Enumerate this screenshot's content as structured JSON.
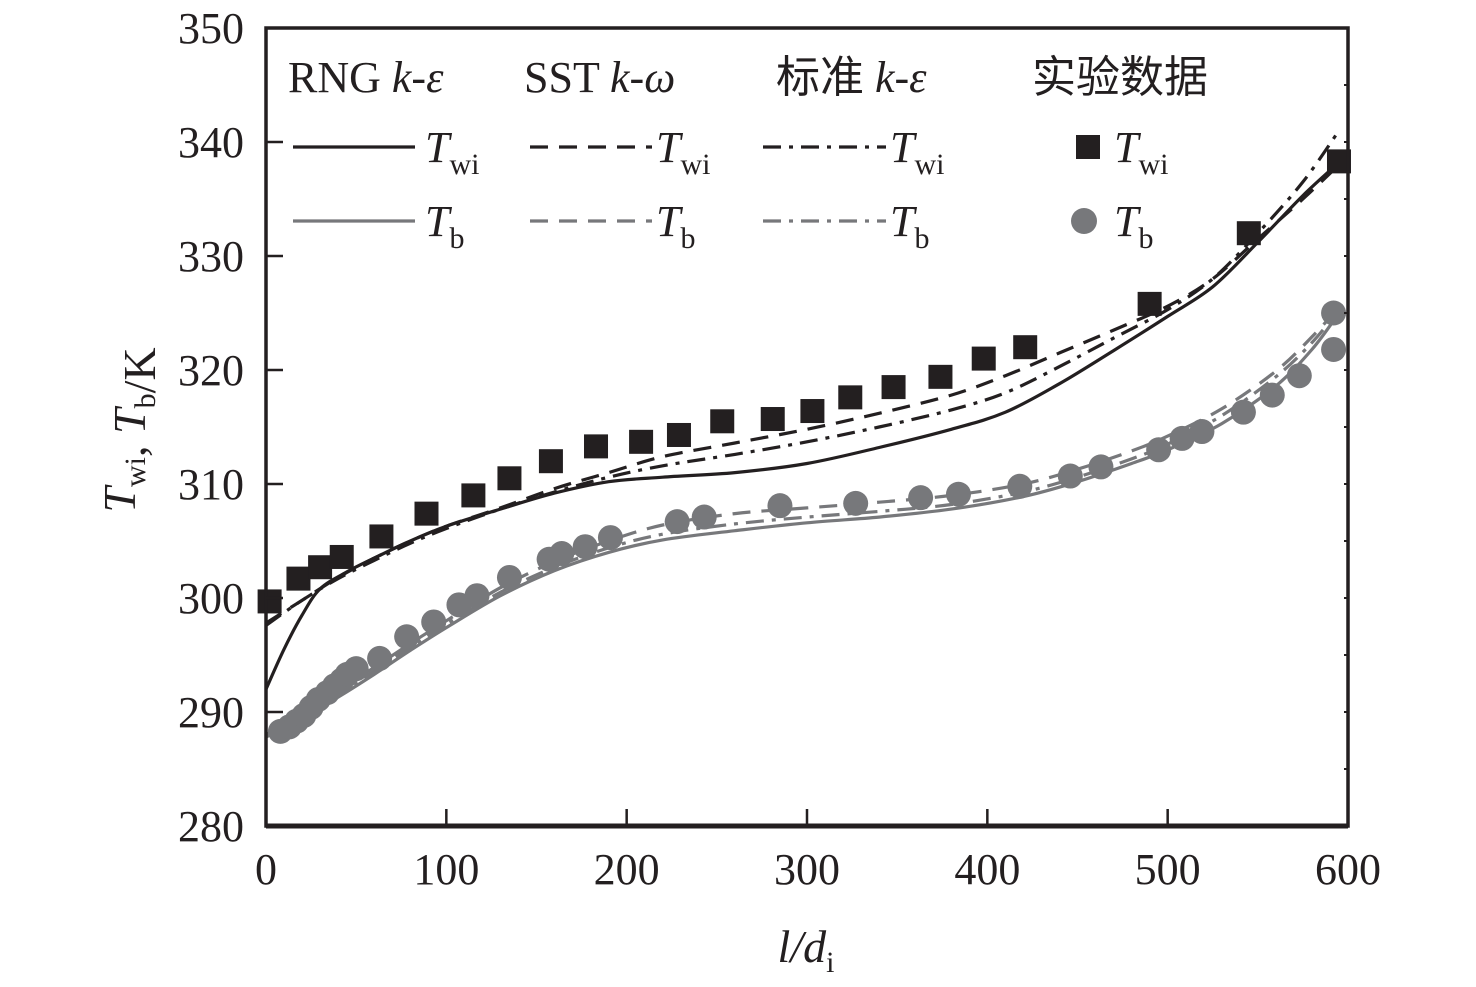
{
  "chart_data": {
    "type": "line",
    "title": "",
    "xlabel": "l/d_i",
    "ylabel": "T_wi, T_b/K",
    "xlabel_parts": {
      "main": "l/d",
      "sub": "i"
    },
    "ylabel_parts": [
      {
        "text": "T",
        "sub": "wi"
      },
      {
        "text": ", "
      },
      {
        "text": "T",
        "sub": "b"
      },
      {
        "text": "/K"
      }
    ],
    "xlim": [
      0,
      600
    ],
    "ylim": [
      280,
      350
    ],
    "xticks": [
      0,
      100,
      200,
      300,
      400,
      500,
      600
    ],
    "yticks": [
      280,
      290,
      300,
      310,
      320,
      330,
      340,
      350
    ],
    "grid": false,
    "legend_position": "top",
    "legend": {
      "groups": [
        {
          "title": "RNG k-ε",
          "title_parts": [
            {
              "t": "RNG "
            },
            {
              "t": "k-ε",
              "i": true
            }
          ]
        },
        {
          "title": "SST k-ω",
          "title_parts": [
            {
              "t": "SST "
            },
            {
              "t": "k-ω",
              "i": true
            }
          ]
        },
        {
          "title": "标准 k-ε",
          "title_parts": [
            {
              "t": "标准 "
            },
            {
              "t": "k-ε",
              "i": true
            }
          ]
        },
        {
          "title": "实验数据",
          "title_parts": [
            {
              "t": "实验数据"
            }
          ]
        }
      ],
      "row_labels": [
        {
          "text": "T",
          "sub": "wi"
        },
        {
          "text": "T",
          "sub": "b"
        }
      ]
    },
    "colors": {
      "wall": "#231f20",
      "bulk": "#77787b",
      "axis": "#231f20"
    },
    "series": [
      {
        "name": "RNG k-ε T_wi",
        "model": "RNG k-ε",
        "quantity": "T_wi",
        "style": "solid",
        "color_key": "wall",
        "x": [
          0,
          10,
          20,
          30,
          45,
          60,
          80,
          100,
          130,
          160,
          190,
          220,
          260,
          300,
          340,
          380,
          410,
          440,
          470,
          500,
          525,
          550,
          575,
          595
        ],
        "y": [
          292.0,
          295.5,
          298.5,
          300.8,
          302.3,
          303.5,
          305.0,
          306.3,
          307.8,
          309.2,
          310.2,
          310.6,
          311.0,
          311.8,
          313.2,
          314.8,
          316.3,
          318.8,
          321.7,
          324.7,
          327.3,
          331.2,
          335.3,
          338.2
        ]
      },
      {
        "name": "SST k-ω T_wi",
        "model": "SST k-ω",
        "quantity": "T_wi",
        "style": "dashed",
        "color_key": "wall",
        "x": [
          0,
          20,
          40,
          60,
          80,
          100,
          130,
          160,
          190,
          220,
          260,
          300,
          340,
          380,
          410,
          440,
          470,
          500,
          525,
          550,
          575,
          595
        ],
        "y": [
          297.8,
          299.8,
          301.8,
          303.5,
          305.0,
          306.3,
          307.9,
          309.6,
          311.0,
          312.4,
          313.6,
          314.8,
          316.2,
          317.8,
          319.5,
          321.5,
          323.5,
          325.6,
          328.0,
          331.5,
          335.0,
          338.0
        ]
      },
      {
        "name": "标准 k-ε T_wi",
        "model": "标准 k-ε",
        "quantity": "T_wi",
        "style": "dashdot",
        "color_key": "wall",
        "x": [
          0,
          20,
          40,
          60,
          80,
          100,
          130,
          160,
          190,
          220,
          260,
          300,
          340,
          380,
          410,
          440,
          470,
          500,
          525,
          550,
          575,
          595
        ],
        "y": [
          297.6,
          299.8,
          301.7,
          303.3,
          304.8,
          306.1,
          307.8,
          309.3,
          310.6,
          311.6,
          312.6,
          313.7,
          315.0,
          316.5,
          318.0,
          320.3,
          322.8,
          325.3,
          328.0,
          332.0,
          336.5,
          341.0
        ]
      },
      {
        "name": "RNG k-ε T_b",
        "model": "RNG k-ε",
        "quantity": "T_b",
        "style": "solid",
        "color_key": "bulk",
        "x": [
          0,
          20,
          40,
          60,
          80,
          100,
          130,
          160,
          190,
          220,
          260,
          300,
          340,
          380,
          420,
          450,
          480,
          500,
          530,
          560,
          580,
          595
        ],
        "y": [
          287.8,
          289.4,
          291.3,
          293.3,
          295.4,
          297.4,
          300.2,
          302.4,
          304.0,
          305.1,
          305.9,
          306.6,
          307.1,
          307.8,
          308.9,
          310.2,
          311.8,
          313.0,
          315.3,
          318.6,
          321.8,
          325.0
        ]
      },
      {
        "name": "SST k-ω T_b",
        "model": "SST k-ω",
        "quantity": "T_b",
        "style": "dashed",
        "color_key": "bulk",
        "x": [
          0,
          20,
          40,
          60,
          80,
          100,
          130,
          160,
          190,
          220,
          260,
          300,
          340,
          380,
          420,
          450,
          480,
          500,
          530,
          560,
          580,
          595
        ],
        "y": [
          288.0,
          289.8,
          291.9,
          293.9,
          296.0,
          298.0,
          300.9,
          303.2,
          305.0,
          306.4,
          307.4,
          307.9,
          308.4,
          309.0,
          310.0,
          311.3,
          312.9,
          314.2,
          316.6,
          319.9,
          322.9,
          325.5
        ]
      },
      {
        "name": "标准 k-ε T_b",
        "model": "标准 k-ε",
        "quantity": "T_b",
        "style": "dashdot",
        "color_key": "bulk",
        "x": [
          0,
          20,
          40,
          60,
          80,
          100,
          130,
          160,
          190,
          220,
          260,
          300,
          340,
          380,
          420,
          450,
          480,
          500,
          530,
          560,
          580,
          595
        ],
        "y": [
          287.9,
          289.6,
          291.6,
          293.6,
          295.7,
          297.7,
          300.5,
          302.7,
          304.4,
          305.6,
          306.5,
          307.1,
          307.6,
          308.2,
          309.3,
          310.6,
          312.2,
          313.5,
          316.0,
          319.4,
          322.4,
          325.3
        ]
      },
      {
        "name": "实验数据 T_wi",
        "model": "实验数据",
        "quantity": "T_wi",
        "style": "marker-square",
        "color_key": "wall",
        "x": [
          2,
          18,
          30,
          42,
          64,
          89,
          115,
          135,
          158,
          183,
          208,
          229,
          253,
          281,
          303,
          324,
          348,
          374,
          398,
          421,
          490,
          545,
          595
        ],
        "y": [
          299.7,
          301.7,
          302.7,
          303.6,
          305.4,
          307.4,
          309.0,
          310.5,
          312.0,
          313.3,
          313.7,
          314.3,
          315.5,
          315.7,
          316.4,
          317.6,
          318.5,
          319.4,
          321.0,
          322.0,
          325.8,
          332.0,
          338.3
        ]
      },
      {
        "name": "实验数据 T_b",
        "model": "实验数据",
        "quantity": "T_b",
        "style": "marker-circle",
        "color_key": "bulk",
        "x": [
          8,
          13,
          17,
          21,
          25,
          29,
          34,
          38,
          42,
          45,
          50,
          63,
          78,
          93,
          107,
          117,
          135,
          157,
          164,
          177,
          191,
          228,
          243,
          285,
          327,
          363,
          384,
          418,
          446,
          463,
          495,
          508,
          519,
          542,
          558,
          573,
          592,
          592
        ],
        "y": [
          288.3,
          288.7,
          289.2,
          289.7,
          290.4,
          291.1,
          291.7,
          292.3,
          292.8,
          293.3,
          293.8,
          294.7,
          296.6,
          297.9,
          299.4,
          300.2,
          301.8,
          303.4,
          303.9,
          304.5,
          305.3,
          306.7,
          307.1,
          308.1,
          308.3,
          308.8,
          309.1,
          309.8,
          310.7,
          311.5,
          313.0,
          314.0,
          314.6,
          316.3,
          317.8,
          319.5,
          321.8,
          325.0
        ]
      }
    ]
  }
}
